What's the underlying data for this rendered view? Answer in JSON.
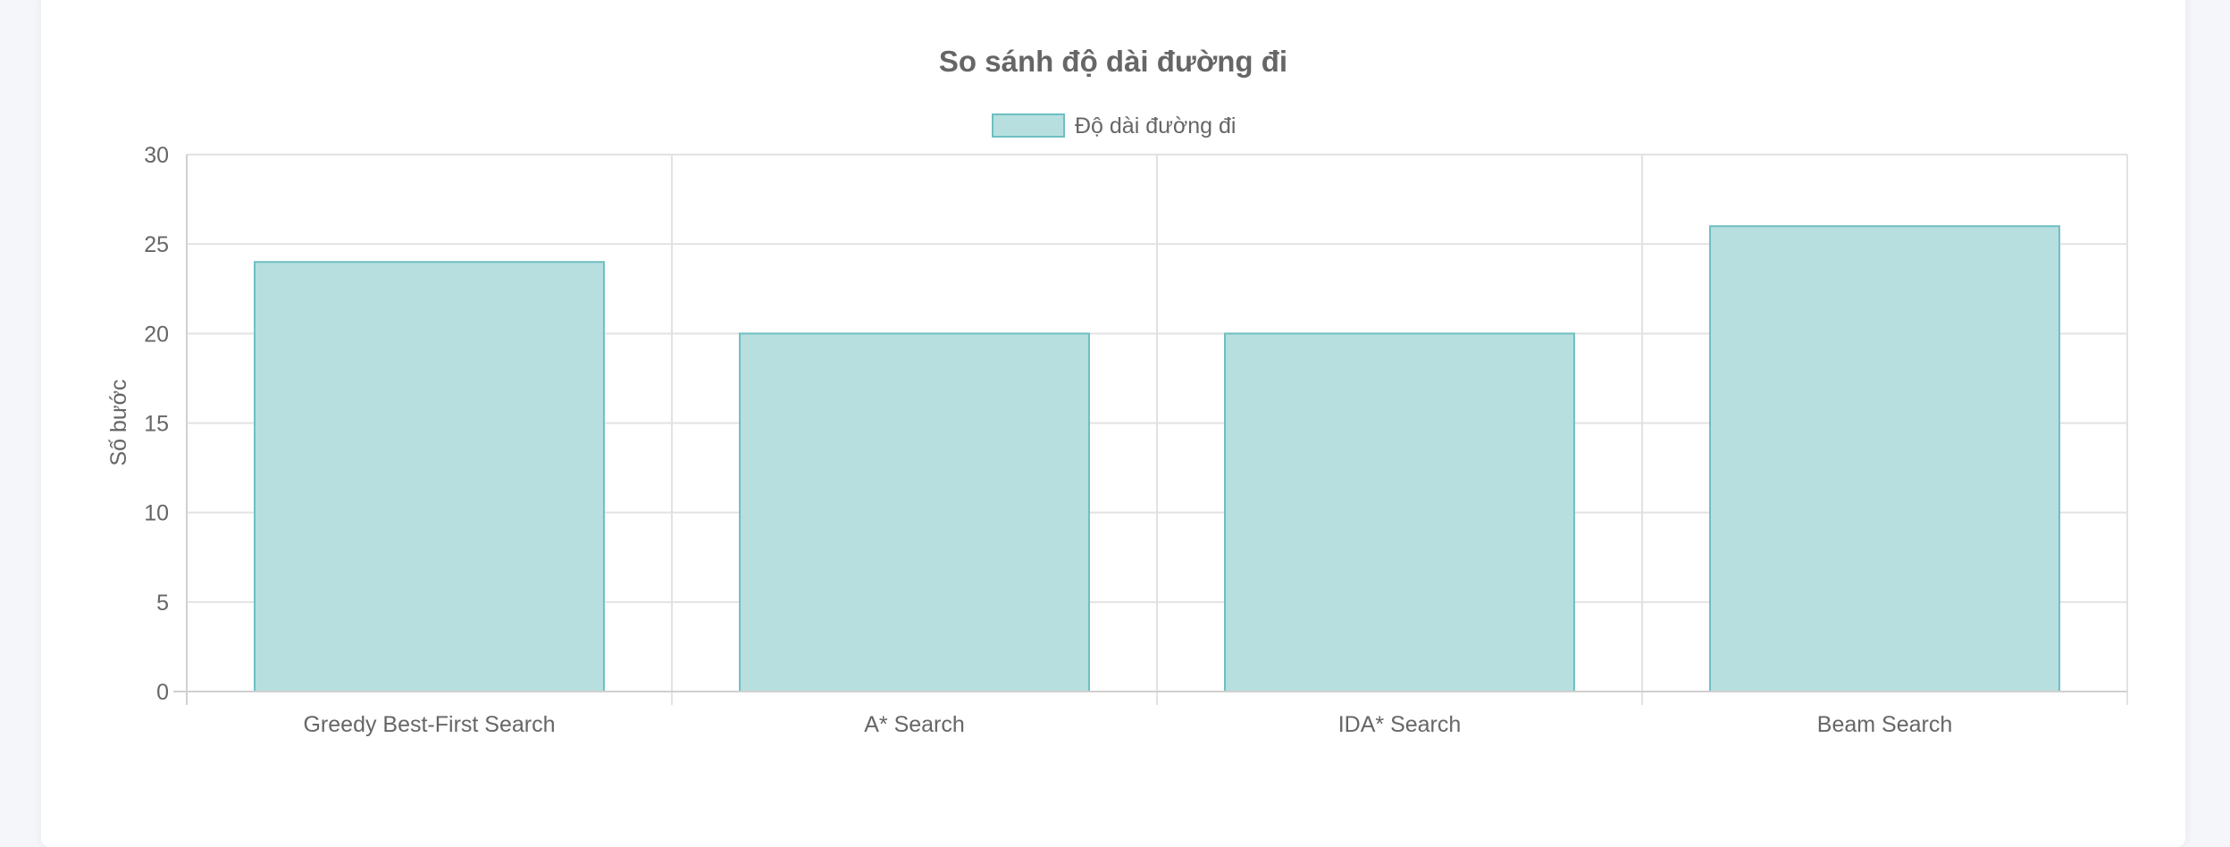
{
  "chart_data": {
    "type": "bar",
    "title": "So sánh độ dài đường đi",
    "xlabel": "",
    "ylabel": "Số bước",
    "categories": [
      "Greedy Best-First Search",
      "A* Search",
      "IDA* Search",
      "Beam Search"
    ],
    "series": [
      {
        "name": "Độ dài đường đi",
        "values": [
          24,
          20,
          20,
          26
        ]
      }
    ],
    "ylim": [
      0,
      30
    ],
    "yticks": [
      0,
      5,
      10,
      15,
      20,
      25,
      30
    ],
    "grid": true,
    "legend_position": "top-center",
    "colors": {
      "bar_fill": "#b7dfdf",
      "bar_border": "#6fbfc2",
      "text": "#666666",
      "grid": "#e2e2e2"
    }
  }
}
